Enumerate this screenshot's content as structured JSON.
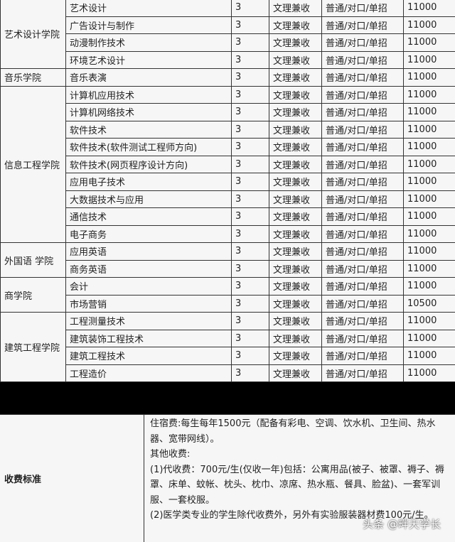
{
  "rows": [
    {
      "college": "艺术设计学院",
      "span": 4,
      "major": "艺术设计"
    },
    {
      "major": "广告设计与制作"
    },
    {
      "major": "动漫制作技术"
    },
    {
      "major": "环境艺术设计"
    },
    {
      "college": "音乐学院",
      "span": 1,
      "major": "音乐表演"
    },
    {
      "college": "信息工程学院",
      "span": 9,
      "major": "计算机应用技术"
    },
    {
      "major": "计算机网络技术"
    },
    {
      "major": "软件技术"
    },
    {
      "major": "软件技术(软件测试工程师方向)"
    },
    {
      "major": "软件技术(网页程序设计方向)"
    },
    {
      "major": "应用电子技术"
    },
    {
      "major": "大数据技术与应用"
    },
    {
      "major": "通信技术"
    },
    {
      "major": "电子商务"
    },
    {
      "college": "外国语 学院",
      "span": 2,
      "major": "应用英语"
    },
    {
      "major": "商务英语"
    },
    {
      "college": "商学院",
      "span": 2,
      "major": "会计"
    },
    {
      "major": "市场营销",
      "fee": "10500"
    },
    {
      "college": "建筑工程学院",
      "span": 4,
      "major": "工程测量技术"
    },
    {
      "major": "建筑装饰工程技术"
    },
    {
      "major": "建筑工程技术"
    },
    {
      "major": "工程造价"
    }
  ],
  "defaults": {
    "years": "3",
    "subject": "文理兼收",
    "admission": "普通/对口/单招",
    "fee": "11000"
  },
  "fee_section": {
    "label": "收费标准",
    "lines": [
      "住宿费:每生每年1500元（配备有彩电、空调、饮水机、卫生间、热水器、宽带网线）。",
      "其他收费:",
      "(1)代收费：700元/生(仅收一年)包括：公寓用品(被子、被罩、褥子、褥罩、床单、蚊帐、枕头、枕巾、凉席、热水瓶、餐具、脸盆)、一套军训服、一套校服。",
      "(2)医学类专业的学生除代收费外，另外有实验服装器材费100元/生。"
    ]
  },
  "watermark": "头条 @畔天学长"
}
